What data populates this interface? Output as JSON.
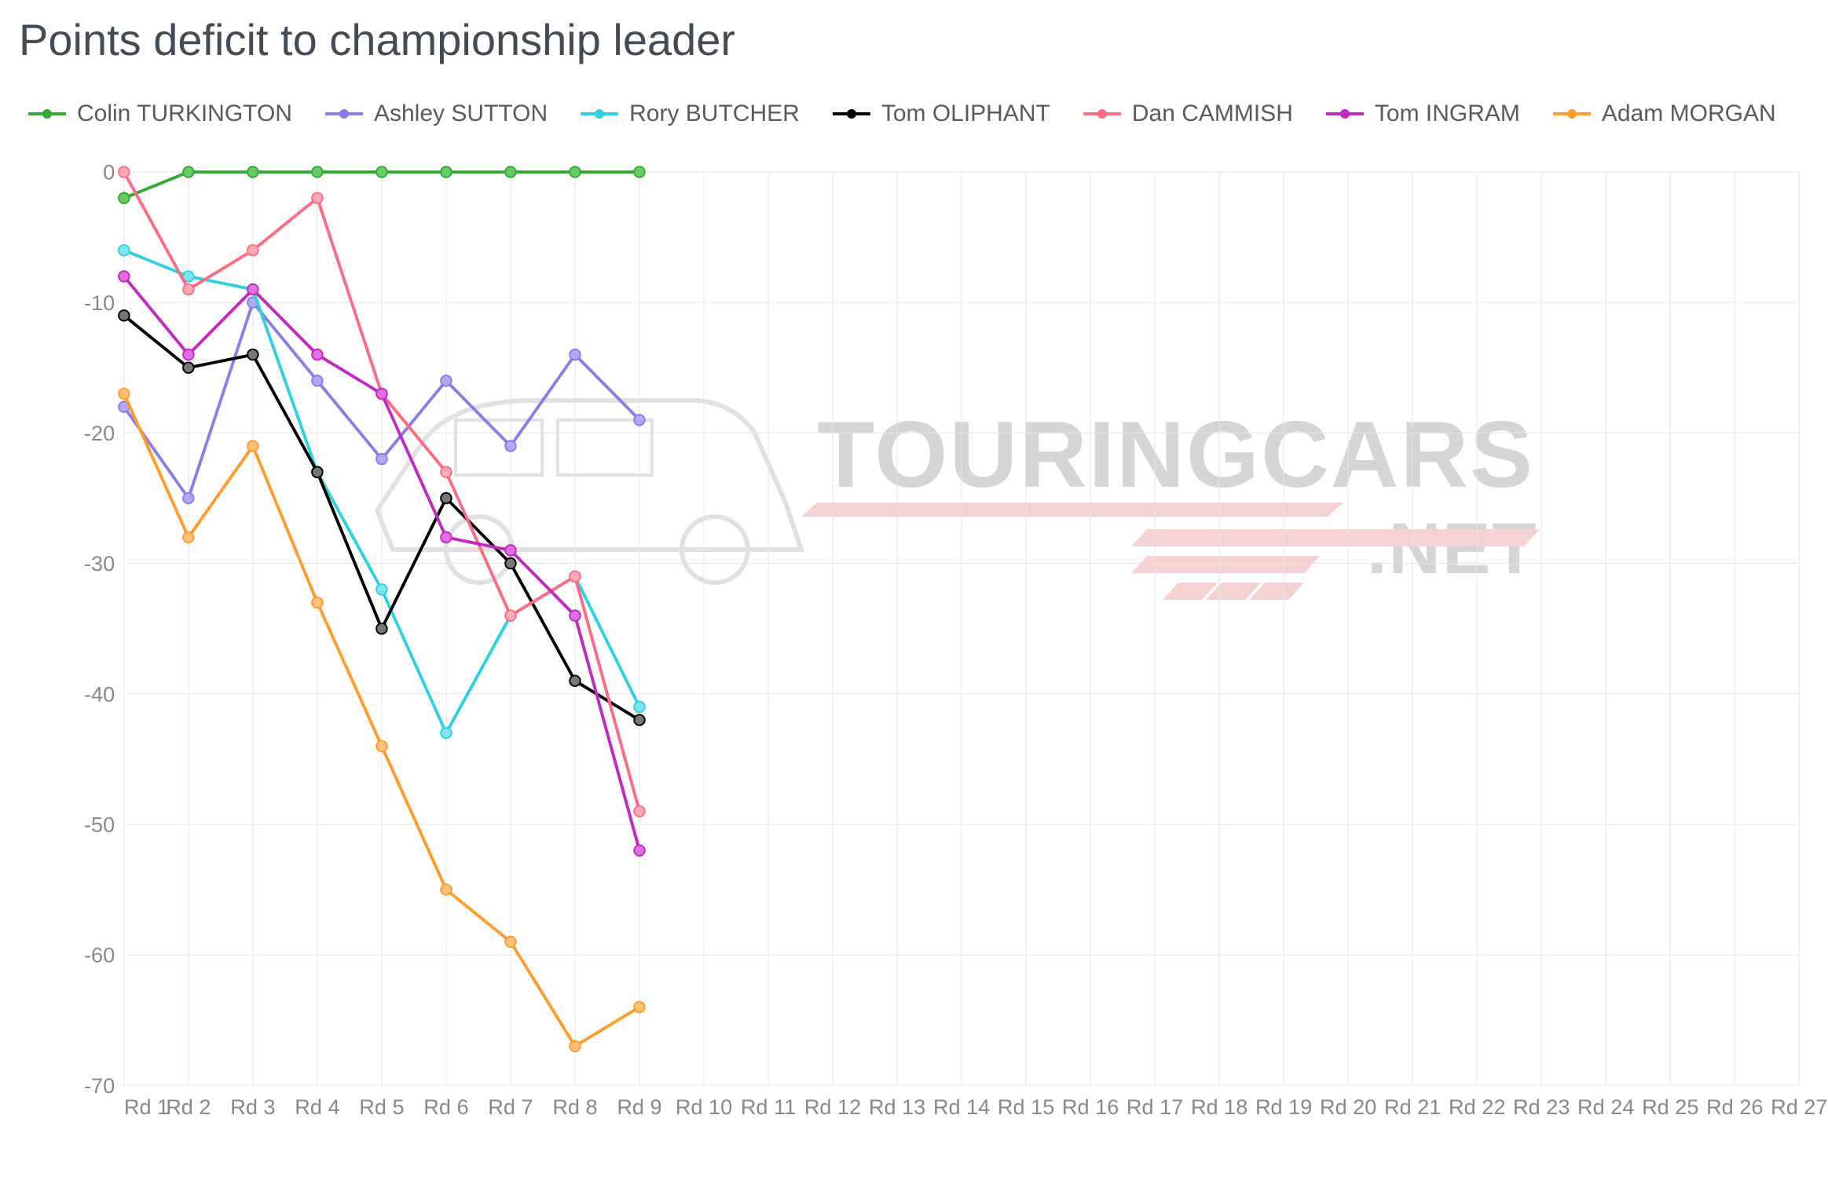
{
  "chart": {
    "type": "line",
    "title": "Points deficit to championship leader",
    "title_fontsize": 56,
    "title_color": "#434b54",
    "background_color": "#ffffff",
    "grid_color": "#e6e6e6",
    "axis_label_color": "#888888",
    "axis_label_fontsize": 28,
    "line_width": 4,
    "marker_radius": 7,
    "marker_style": "circle",
    "x": {
      "categories": [
        "Rd 1",
        "Rd 2",
        "Rd 3",
        "Rd 4",
        "Rd 5",
        "Rd 6",
        "Rd 7",
        "Rd 8",
        "Rd 9",
        "Rd 10",
        "Rd 11",
        "Rd 12",
        "Rd 13",
        "Rd 14",
        "Rd 15",
        "Rd 16",
        "Rd 17",
        "Rd 18",
        "Rd 19",
        "Rd 20",
        "Rd 21",
        "Rd 22",
        "Rd 23",
        "Rd 24",
        "Rd 25",
        "Rd 26",
        "Rd 27"
      ]
    },
    "y": {
      "min": -70,
      "max": 0,
      "tick_step": 10,
      "ticks": [
        0,
        -10,
        -20,
        -30,
        -40,
        -50,
        -60,
        -70
      ]
    },
    "series": [
      {
        "name": "Colin TURKINGTON",
        "color": "#33aa33",
        "marker_fill": "#66cc66",
        "values": [
          -2,
          0,
          0,
          0,
          0,
          0,
          0,
          0,
          0
        ]
      },
      {
        "name": "Ashley SUTTON",
        "color": "#8a7de8",
        "marker_fill": "#b3a8f2",
        "values": [
          -18,
          -25,
          -10,
          -16,
          -22,
          -16,
          -21,
          -14,
          -19
        ]
      },
      {
        "name": "Rory BUTCHER",
        "color": "#2ed1e0",
        "marker_fill": "#7fe6ee",
        "values": [
          -6,
          -8,
          -9,
          -23,
          -32,
          -43,
          -34,
          -31,
          -41
        ]
      },
      {
        "name": "Tom OLIPHANT",
        "color": "#000000",
        "marker_fill": "#777777",
        "values": [
          -11,
          -15,
          -14,
          -23,
          -35,
          -25,
          -30,
          -39,
          -42
        ]
      },
      {
        "name": "Dan CAMMISH",
        "color": "#ff6b81",
        "marker_fill": "#ffaab6",
        "values": [
          0,
          -9,
          -6,
          -2,
          -17,
          -23,
          -34,
          -31,
          -49
        ]
      },
      {
        "name": "Tom INGRAM",
        "color": "#c228c2",
        "marker_fill": "#e070e0",
        "values": [
          -8,
          -14,
          -9,
          -14,
          -17,
          -28,
          -29,
          -34,
          -52
        ]
      },
      {
        "name": "Adam MORGAN",
        "color": "#ff9c2a",
        "marker_fill": "#ffc17a",
        "values": [
          -17,
          -28,
          -21,
          -33,
          -44,
          -55,
          -59,
          -67,
          -64
        ]
      }
    ],
    "watermark": {
      "line1": "TOURINGCARS",
      "line2": ".NET",
      "text_color": "#888888",
      "accent_color": "#e37f7f",
      "opacity": 0.35
    }
  }
}
